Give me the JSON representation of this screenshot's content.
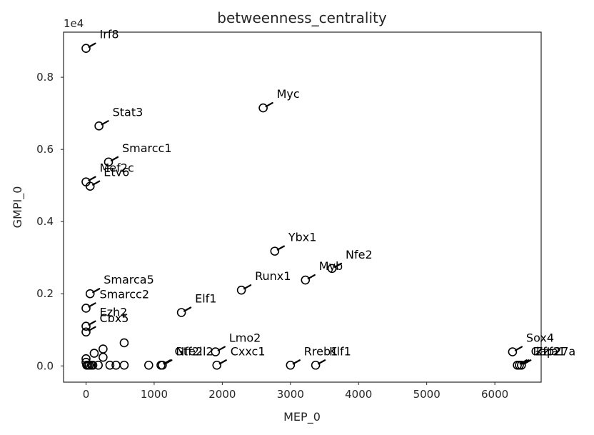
{
  "chart_data": {
    "type": "scatter",
    "title": "betweenness_centrality",
    "xlabel": "MEP_0",
    "ylabel": "GMPI_0",
    "y_exponent_label": "1e4",
    "xlim": [
      -330,
      6680
    ],
    "ylim": [
      -450,
      9250
    ],
    "x_ticks": [
      0,
      1000,
      2000,
      3000,
      4000,
      5000,
      6000
    ],
    "x_tick_labels": [
      "0",
      "1000",
      "2000",
      "3000",
      "4000",
      "5000",
      "6000"
    ],
    "y_ticks": [
      0,
      2000,
      4000,
      6000,
      8000
    ],
    "y_tick_labels": [
      "0.0",
      "0.2",
      "0.4",
      "0.6",
      "0.8"
    ],
    "grid": false,
    "labeled_points": [
      {
        "label": "Irf8",
        "x": 0,
        "y": 8800
      },
      {
        "label": "Myc",
        "x": 2600,
        "y": 7150
      },
      {
        "label": "Stat3",
        "x": 190,
        "y": 6650
      },
      {
        "label": "Smarcc1",
        "x": 330,
        "y": 5650
      },
      {
        "label": "Mef2c",
        "x": 0,
        "y": 5100
      },
      {
        "label": "Etv6",
        "x": 60,
        "y": 4980
      },
      {
        "label": "Ybx1",
        "x": 2770,
        "y": 3180
      },
      {
        "label": "Nfe2",
        "x": 3610,
        "y": 2700
      },
      {
        "label": "Myb",
        "x": 3220,
        "y": 2380
      },
      {
        "label": "Runx1",
        "x": 2280,
        "y": 2100
      },
      {
        "label": "Smarca5",
        "x": 60,
        "y": 2000
      },
      {
        "label": "Smarcc2",
        "x": 0,
        "y": 1600
      },
      {
        "label": "Elf1",
        "x": 1400,
        "y": 1480
      },
      {
        "label": "Ezh2",
        "x": 0,
        "y": 1100
      },
      {
        "label": "Cbx5",
        "x": 0,
        "y": 940
      },
      {
        "label": "Sox4",
        "x": 6260,
        "y": 390
      },
      {
        "label": "Lmo2",
        "x": 1900,
        "y": 390
      },
      {
        "label": "Nfe2l2",
        "x": 1120,
        "y": 20
      },
      {
        "label": "Gtf2i",
        "x": 1100,
        "y": 20
      },
      {
        "label": "Cxxc1",
        "x": 1920,
        "y": 20
      },
      {
        "label": "Rreb1",
        "x": 3000,
        "y": 20
      },
      {
        "label": "Klf1",
        "x": 3370,
        "y": 20
      },
      {
        "label": "Gata1",
        "x": 6330,
        "y": 20
      },
      {
        "label": "Ikzf2",
        "x": 6360,
        "y": 20
      },
      {
        "label": "Zfp27a",
        "x": 6390,
        "y": 20
      }
    ],
    "unlabeled_points": [
      {
        "x": 560,
        "y": 640
      },
      {
        "x": 250,
        "y": 470
      },
      {
        "x": 120,
        "y": 350
      },
      {
        "x": 250,
        "y": 240
      },
      {
        "x": 0,
        "y": 200
      },
      {
        "x": 0,
        "y": 100
      },
      {
        "x": 10,
        "y": 20
      },
      {
        "x": 30,
        "y": 20
      },
      {
        "x": 50,
        "y": 20
      },
      {
        "x": 80,
        "y": 20
      },
      {
        "x": 100,
        "y": 20
      },
      {
        "x": 180,
        "y": 20
      },
      {
        "x": 350,
        "y": 20
      },
      {
        "x": 440,
        "y": 20
      },
      {
        "x": 560,
        "y": 20
      },
      {
        "x": 920,
        "y": 20
      }
    ]
  }
}
